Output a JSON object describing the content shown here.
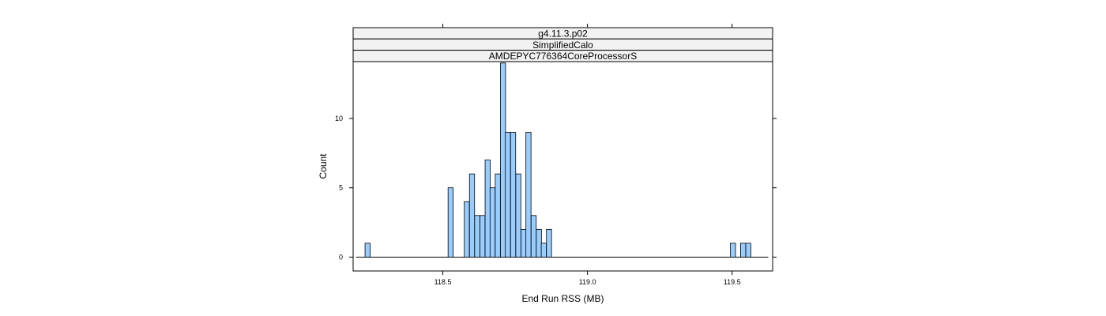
{
  "chart_data": {
    "type": "bar",
    "subtype": "histogram",
    "strips": [
      "g4.11.3.p02",
      "SimplifiedCalo",
      "AMDEPYC776364CoreProcessorS"
    ],
    "xlabel": "End Run RSS (MB)",
    "ylabel": "Count",
    "xlim": [
      118.19,
      119.64
    ],
    "ylim": [
      -1,
      14.1
    ],
    "x_ticks": [
      118.5,
      119.0,
      119.5
    ],
    "x_tick_labels": [
      "118.5",
      "119.0",
      "119.5"
    ],
    "y_ticks": [
      0,
      5,
      10
    ],
    "y_tick_labels": [
      "0",
      "5",
      "10"
    ],
    "bin_width": 0.01767,
    "range": [
      118.2,
      119.625
    ],
    "bins": [
      {
        "x": 118.24,
        "count": 1
      },
      {
        "x": 118.527,
        "count": 5
      },
      {
        "x": 118.583,
        "count": 4
      },
      {
        "x": 118.601,
        "count": 6
      },
      {
        "x": 118.619,
        "count": 3
      },
      {
        "x": 118.637,
        "count": 3
      },
      {
        "x": 118.655,
        "count": 7
      },
      {
        "x": 118.672,
        "count": 5
      },
      {
        "x": 118.69,
        "count": 6
      },
      {
        "x": 118.708,
        "count": 14
      },
      {
        "x": 118.725,
        "count": 9
      },
      {
        "x": 118.743,
        "count": 9
      },
      {
        "x": 118.761,
        "count": 6
      },
      {
        "x": 118.779,
        "count": 2
      },
      {
        "x": 118.796,
        "count": 9
      },
      {
        "x": 118.814,
        "count": 3
      },
      {
        "x": 118.832,
        "count": 2
      },
      {
        "x": 118.849,
        "count": 1
      },
      {
        "x": 118.867,
        "count": 2
      },
      {
        "x": 119.503,
        "count": 1
      },
      {
        "x": 119.538,
        "count": 1
      },
      {
        "x": 119.556,
        "count": 1
      }
    ],
    "colors": {
      "bar_fill": "#99ccff",
      "bar_stroke": "#000000",
      "strip_fill": "#f2f2f2",
      "frame": "#000000"
    },
    "grid": false,
    "legend": "none"
  }
}
